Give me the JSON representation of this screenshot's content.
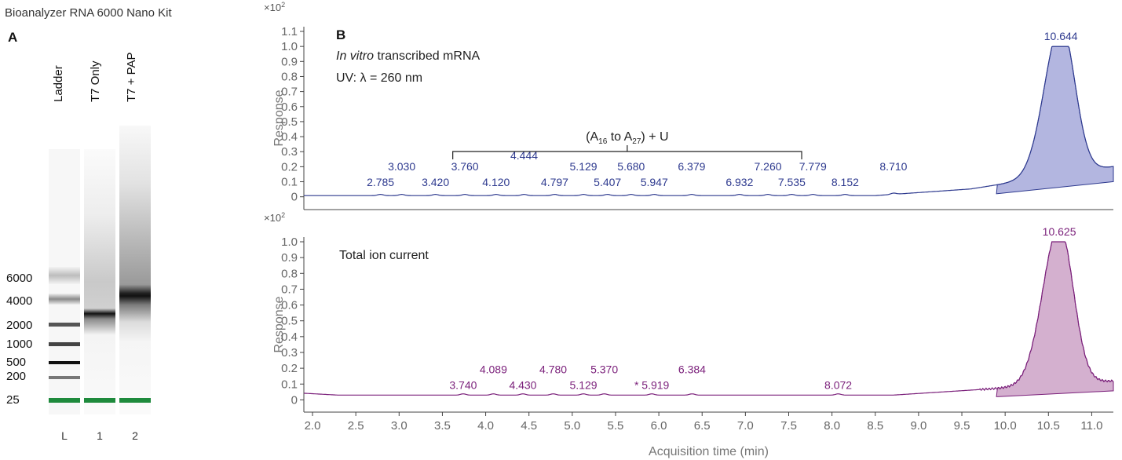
{
  "page_title": "Bioanalyzer RNA 6000 Nano Kit",
  "gel": {
    "letter": "A",
    "lanes": [
      {
        "header": "Ladder",
        "number": "L"
      },
      {
        "header": "T7 Only",
        "number": "1"
      },
      {
        "header": "T7 + PAP",
        "number": "2"
      }
    ],
    "size_labels": [
      "6000",
      "4000",
      "2000",
      "1000",
      "500",
      "200",
      "25"
    ],
    "marker_color": "#1e8a3c"
  },
  "chart_data": [
    {
      "type": "line",
      "panel_letter": "B",
      "title_italic": "In vitro",
      "title_rest": " transcribed mRNA",
      "subtitle": "UV: λ = 260 nm",
      "ylabel": "Response",
      "y_multiplier": "×10",
      "y_multiplier_exp": "2",
      "xlim": [
        1.9,
        11.25
      ],
      "ylim": [
        0,
        1.15
      ],
      "y_ticks": [
        "0",
        "0.1",
        "0.2",
        "0.3",
        "0.4",
        "0.5",
        "0.6",
        "0.7",
        "0.8",
        "0.9",
        "1.0",
        "1.1"
      ],
      "color": "#2e3a8f",
      "fill": "#b3b6e0",
      "peak_time": 10.644,
      "peak_value": 1.0,
      "baseline_value": 0.01,
      "integration_start": 9.9,
      "bracket": {
        "from": 3.62,
        "to": 7.65,
        "label_main": "(A",
        "sub1": "16",
        "mid": " to A",
        "sub2": "27",
        "end": ") + U"
      },
      "peak_labels": [
        {
          "t": 2.785,
          "text": "2.785"
        },
        {
          "t": 3.03,
          "text": "3.030"
        },
        {
          "t": 3.42,
          "text": "3.420"
        },
        {
          "t": 3.76,
          "text": "3.760"
        },
        {
          "t": 4.12,
          "text": "4.120"
        },
        {
          "t": 4.444,
          "text": "4.444"
        },
        {
          "t": 4.797,
          "text": "4.797"
        },
        {
          "t": 5.129,
          "text": "5.129"
        },
        {
          "t": 5.407,
          "text": "5.407"
        },
        {
          "t": 5.68,
          "text": "5.680"
        },
        {
          "t": 5.947,
          "text": "5.947"
        },
        {
          "t": 6.379,
          "text": "6.379"
        },
        {
          "t": 6.932,
          "text": "6.932"
        },
        {
          "t": 7.26,
          "text": "7.260"
        },
        {
          "t": 7.535,
          "text": "7.535"
        },
        {
          "t": 7.779,
          "text": "7.779"
        },
        {
          "t": 8.152,
          "text": "8.152"
        },
        {
          "t": 8.71,
          "text": "8.710"
        },
        {
          "t": 10.644,
          "text": "10.644"
        }
      ]
    },
    {
      "type": "line",
      "title": "Total ion current",
      "ylabel": "Response",
      "y_multiplier": "×10",
      "y_multiplier_exp": "2",
      "xlim": [
        1.9,
        11.25
      ],
      "ylim": [
        0,
        1.1
      ],
      "y_ticks": [
        "0",
        "0.1",
        "0.2",
        "0.3",
        "0.4",
        "0.5",
        "0.6",
        "0.7",
        "0.8",
        "0.9",
        "1.0"
      ],
      "x_ticks": [
        "2.0",
        "2.5",
        "3.0",
        "3.5",
        "4.0",
        "4.5",
        "5.0",
        "5.5",
        "6.0",
        "6.5",
        "7.0",
        "7.5",
        "8.0",
        "8.5",
        "9.0",
        "9.5",
        "10.0",
        "10.5",
        "11.0"
      ],
      "xlabel": "Acquisition time (min)",
      "color": "#7a1f7a",
      "fill": "#d4b0cf",
      "peak_time": 10.625,
      "peak_value": 1.0,
      "baseline_value": 0.03,
      "integration_start": 9.9,
      "peak_labels": [
        {
          "t": 3.74,
          "text": "3.740"
        },
        {
          "t": 4.089,
          "text": "4.089"
        },
        {
          "t": 4.43,
          "text": "4.430"
        },
        {
          "t": 4.78,
          "text": "4.780"
        },
        {
          "t": 5.129,
          "text": "5.129"
        },
        {
          "t": 5.37,
          "text": "5.370"
        },
        {
          "t": 5.919,
          "text": "* 5.919"
        },
        {
          "t": 6.384,
          "text": "6.384"
        },
        {
          "t": 8.072,
          "text": "8.072"
        },
        {
          "t": 10.625,
          "text": "10.625"
        }
      ]
    }
  ]
}
